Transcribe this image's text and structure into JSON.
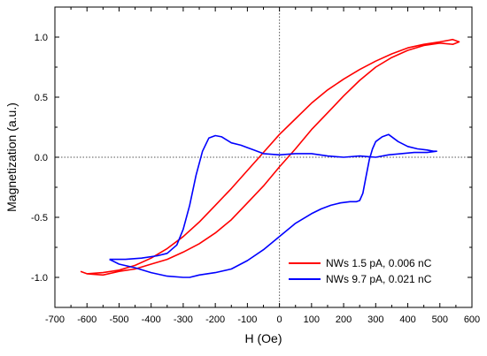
{
  "chart_data": {
    "type": "line",
    "xlabel": "H (Oe)",
    "ylabel": "Magnetization (a.u.)",
    "xlim": [
      -700,
      600
    ],
    "ylim": [
      -1.25,
      1.25
    ],
    "x_ticks": [
      -700,
      -600,
      -500,
      -400,
      -300,
      -200,
      -100,
      0,
      100,
      200,
      300,
      400,
      500,
      600
    ],
    "y_ticks": [
      -1.0,
      -0.5,
      0.0,
      0.5,
      1.0
    ],
    "x_tick_labels": [
      "-700",
      "-600",
      "-500",
      "-400",
      "-300",
      "-200",
      "-100",
      "0",
      "100",
      "200",
      "300",
      "400",
      "500",
      "600"
    ],
    "y_tick_labels": [
      "-1.0",
      "-0.5",
      "0.0",
      "0.5",
      "1.0"
    ],
    "grid": false,
    "zero_lines": true,
    "legend_position": "bottom-right",
    "series": [
      {
        "name": "NWs 1.5 pA, 0.006 nC",
        "color": "#ff0000",
        "x": [
          -620,
          -600,
          -550,
          -500,
          -450,
          -400,
          -350,
          -300,
          -250,
          -200,
          -150,
          -100,
          -50,
          0,
          50,
          100,
          150,
          200,
          250,
          300,
          350,
          400,
          450,
          500,
          540,
          560,
          540,
          500,
          450,
          400,
          350,
          300,
          250,
          200,
          150,
          100,
          50,
          0,
          -50,
          -100,
          -150,
          -200,
          -250,
          -300,
          -350,
          -400,
          -450,
          -500,
          -550,
          -600,
          -620
        ],
        "y": [
          -0.95,
          -0.97,
          -0.96,
          -0.94,
          -0.9,
          -0.84,
          -0.76,
          -0.66,
          -0.54,
          -0.4,
          -0.26,
          -0.11,
          0.04,
          0.19,
          0.32,
          0.45,
          0.56,
          0.65,
          0.73,
          0.8,
          0.86,
          0.91,
          0.94,
          0.96,
          0.98,
          0.96,
          0.94,
          0.95,
          0.93,
          0.89,
          0.83,
          0.75,
          0.64,
          0.51,
          0.37,
          0.23,
          0.07,
          -0.08,
          -0.24,
          -0.38,
          -0.52,
          -0.63,
          -0.72,
          -0.79,
          -0.85,
          -0.89,
          -0.93,
          -0.95,
          -0.98,
          -0.97,
          -0.95
        ]
      },
      {
        "name": "NWs 9.7 pA, 0.021 nC",
        "color": "#0000ff",
        "x": [
          -530,
          -480,
          -430,
          -380,
          -350,
          -320,
          -300,
          -280,
          -260,
          -240,
          -220,
          -200,
          -180,
          -150,
          -120,
          -100,
          -80,
          -50,
          0,
          50,
          100,
          150,
          200,
          250,
          300,
          340,
          380,
          420,
          460,
          490,
          480,
          460,
          430,
          400,
          370,
          340,
          320,
          300,
          290,
          280,
          270,
          260,
          250,
          240,
          220,
          190,
          160,
          130,
          100,
          50,
          0,
          -50,
          -100,
          -150,
          -200,
          -250,
          -280,
          -300,
          -350,
          -400,
          -450,
          -500,
          -530
        ],
        "y": [
          -0.85,
          -0.85,
          -0.84,
          -0.82,
          -0.8,
          -0.73,
          -0.6,
          -0.4,
          -0.15,
          0.05,
          0.16,
          0.18,
          0.17,
          0.12,
          0.1,
          0.08,
          0.06,
          0.03,
          0.02,
          0.03,
          0.03,
          0.01,
          0.0,
          0.01,
          0.0,
          0.02,
          0.03,
          0.04,
          0.04,
          0.05,
          0.05,
          0.06,
          0.07,
          0.09,
          0.13,
          0.19,
          0.17,
          0.13,
          0.07,
          -0.02,
          -0.16,
          -0.3,
          -0.36,
          -0.37,
          -0.37,
          -0.38,
          -0.4,
          -0.43,
          -0.47,
          -0.55,
          -0.66,
          -0.77,
          -0.86,
          -0.93,
          -0.96,
          -0.98,
          -1.0,
          -1.0,
          -0.99,
          -0.96,
          -0.92,
          -0.89,
          -0.85
        ]
      }
    ]
  }
}
